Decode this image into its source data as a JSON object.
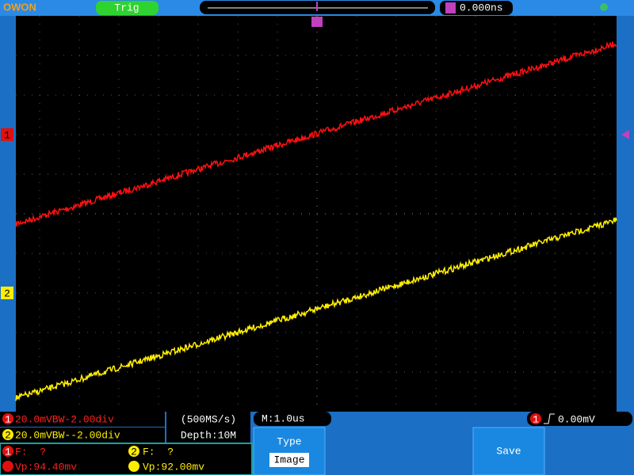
{
  "header": {
    "brand": "OWON",
    "trigger_status": "Trig",
    "trigger_position": "0.000ns",
    "channel_markers": [
      "1",
      "2"
    ]
  },
  "status": {
    "ch1": {
      "marker": "1",
      "text": "20.0mVBW-2.00div"
    },
    "ch2": {
      "marker": "2",
      "text": "20.0mVBW--2.00div"
    },
    "sample_rate": "(500MS/s)",
    "depth": "Depth:10M",
    "timebase": "M:1.0us",
    "trigger": {
      "marker": "1",
      "level": "0.00mV"
    }
  },
  "measurements": [
    {
      "marker": "1",
      "freq": "F:  ?",
      "vp": "Vp:94.40mv"
    },
    {
      "marker": "2",
      "freq": "F:  ?",
      "vp": "Vp:92.00mv"
    }
  ],
  "menu": {
    "type_label": "Type",
    "type_value": "Image",
    "save": "Save"
  }
}
